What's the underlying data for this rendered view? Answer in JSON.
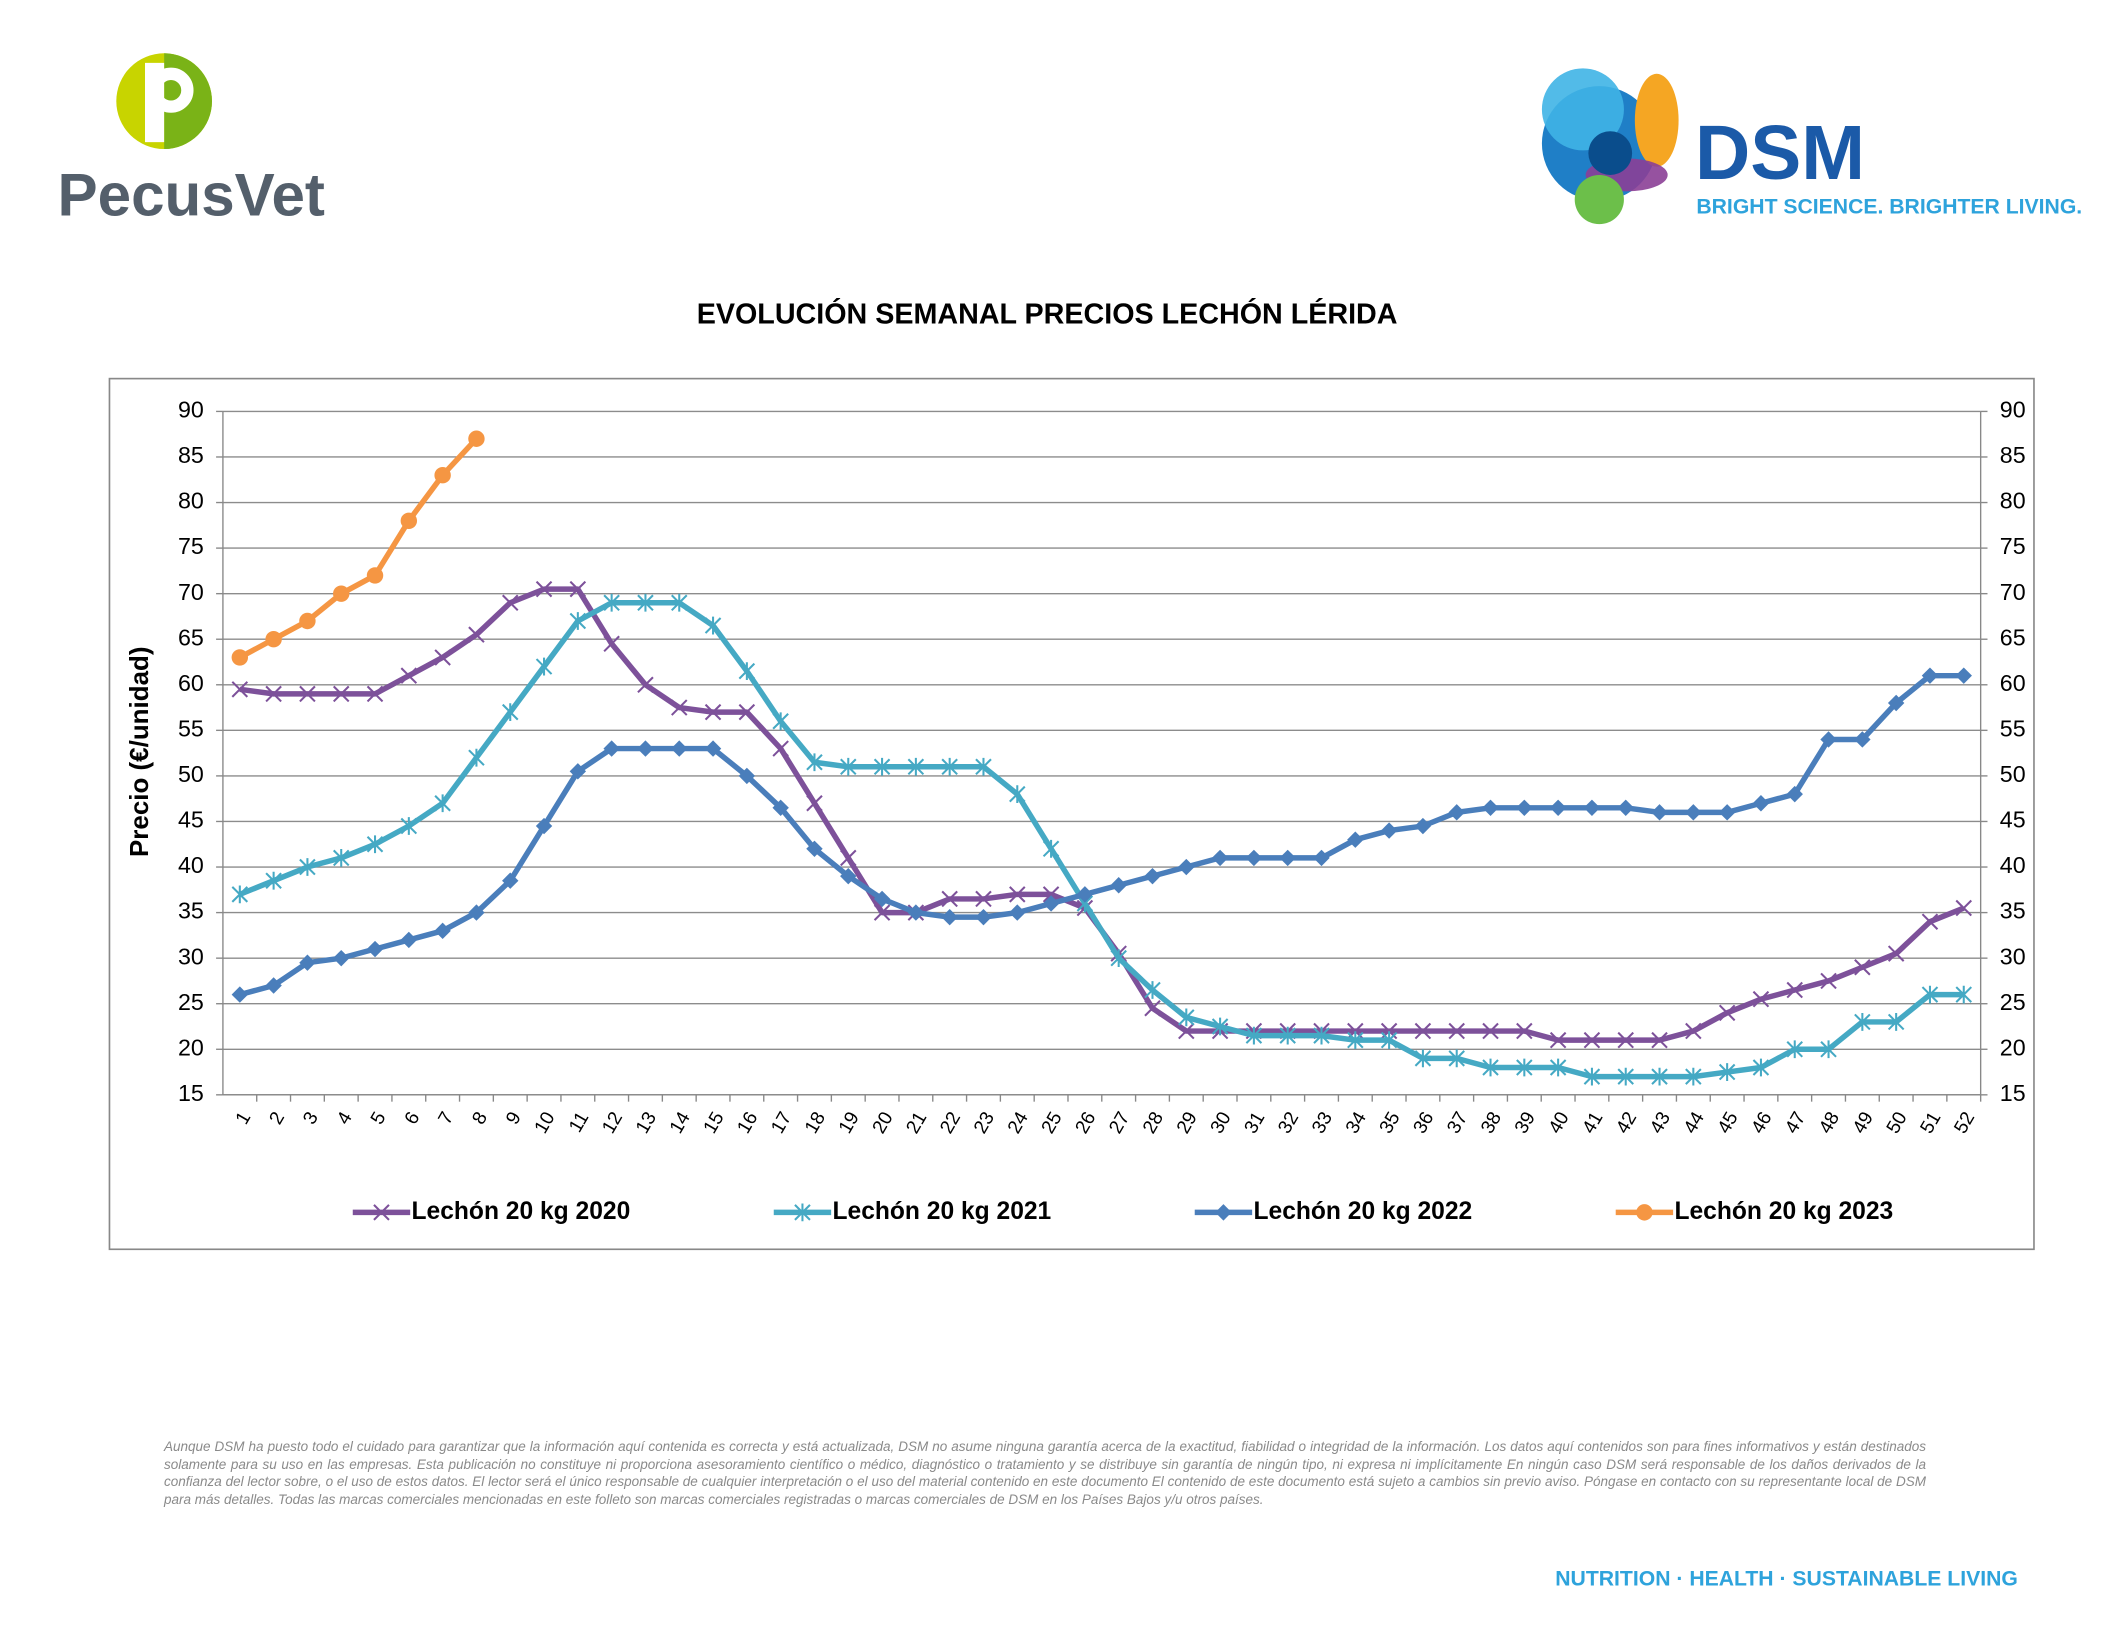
{
  "header": {
    "left_logo": "PecusVet",
    "right_logo": "DSM",
    "right_tagline": "BRIGHT SCIENCE. BRIGHTER LIVING."
  },
  "chart_data": {
    "type": "line",
    "title": "EVOLUCIÓN SEMANAL PRECIOS LECHÓN LÉRIDA",
    "y_label": "Precio (€/unidad)",
    "categories": [
      "1",
      "2",
      "3",
      "4",
      "5",
      "6",
      "7",
      "8",
      "9",
      "10",
      "11",
      "12",
      "13",
      "14",
      "15",
      "16",
      "17",
      "18",
      "19",
      "20",
      "21",
      "22",
      "23",
      "24",
      "25",
      "26",
      "27",
      "28",
      "29",
      "30",
      "31",
      "32",
      "33",
      "34",
      "35",
      "36",
      "37",
      "38",
      "39",
      "40",
      "41",
      "42",
      "43",
      "44",
      "45",
      "46",
      "47",
      "48",
      "49",
      "50",
      "51",
      "52"
    ],
    "series": [
      {
        "name": "Lechón 20 kg 2020",
        "color": "#7d519a",
        "marker": "x",
        "values": [
          59.5,
          59,
          59,
          59,
          59,
          61,
          63,
          65.5,
          69,
          70.5,
          70.5,
          64.5,
          60,
          57.5,
          57,
          57,
          53,
          47,
          41,
          35,
          35,
          36.5,
          36.5,
          37,
          37,
          35.5,
          30.5,
          24.5,
          22,
          22,
          22,
          22,
          22,
          22,
          22,
          22,
          22,
          22,
          22,
          21,
          21,
          21,
          21,
          22,
          24,
          25.5,
          26.5,
          27.5,
          29,
          30.5,
          34,
          35.5
        ]
      },
      {
        "name": "Lechón 20 kg 2021",
        "color": "#45a9c4",
        "marker": "asterisk",
        "values": [
          37,
          38.5,
          40,
          41,
          42.5,
          44.5,
          47,
          52,
          57,
          62,
          67,
          69,
          69,
          69,
          66.5,
          61.5,
          56,
          51.5,
          51,
          51,
          51,
          51,
          51,
          48,
          42,
          36,
          30,
          26.5,
          23.5,
          22.5,
          21.5,
          21.5,
          21.5,
          21,
          21,
          19,
          19,
          18,
          18,
          18,
          17,
          17,
          17,
          17,
          17.5,
          18,
          20,
          20,
          23,
          23,
          26,
          26
        ]
      },
      {
        "name": "Lechón 20 kg 2022",
        "color": "#4a7ebb",
        "marker": "diamond",
        "values": [
          26,
          27,
          29.5,
          30,
          31,
          32,
          33,
          35,
          38.5,
          44.5,
          50.5,
          53,
          53,
          53,
          53,
          50,
          46.5,
          42,
          39,
          36.5,
          35,
          34.5,
          34.5,
          35,
          36,
          37,
          38,
          39,
          40,
          41,
          41,
          41,
          41,
          43,
          44,
          44.5,
          46,
          46.5,
          46.5,
          46.5,
          46.5,
          46.5,
          46,
          46,
          46,
          47,
          48,
          54,
          54,
          58,
          61,
          61
        ]
      },
      {
        "name": "Lechón 20 kg 2023",
        "color": "#f59643",
        "marker": "circle",
        "values": [
          63,
          65,
          67,
          70,
          72,
          78,
          83,
          87,
          null,
          null,
          null,
          null,
          null,
          null,
          null,
          null,
          null,
          null,
          null,
          null,
          null,
          null,
          null,
          null,
          null,
          null,
          null,
          null,
          null,
          null,
          null,
          null,
          null,
          null,
          null,
          null,
          null,
          null,
          null,
          null,
          null,
          null,
          null,
          null,
          null,
          null,
          null,
          null,
          null,
          null,
          null,
          null
        ]
      }
    ],
    "ylim": [
      15,
      90
    ],
    "yticks": [
      15,
      20,
      25,
      30,
      35,
      40,
      45,
      50,
      55,
      60,
      65,
      70,
      75,
      80,
      85,
      90
    ],
    "y2lim": [
      15,
      90
    ],
    "y2ticks": [
      15,
      20,
      25,
      30,
      35,
      40,
      45,
      50,
      55,
      60,
      65,
      70,
      75,
      80,
      85,
      90
    ],
    "grid": true,
    "legend": "bottom"
  },
  "footer": {
    "disclaimer": "Aunque DSM ha puesto todo el cuidado para garantizar que la información aquí contenida es correcta y está actualizada, DSM no asume ninguna garantía acerca de la exactitud, fiabilidad o integridad de la información. Los datos aquí contenidos son para fines informativos y están destinados solamente para su uso en las empresas. Esta publicación no constituye ni proporciona asesoramiento científico o médico, diagnóstico o tratamiento y se distribuye sin garantía de ningún tipo, ni expresa ni implícitamente En ningún caso DSM será responsable de los daños derivados de la confianza del lector sobre, o el uso de estos datos. El lector será el único responsable de cualquier interpretación o el uso del material contenido en este documento El contenido de este documento está sujeto a cambios sin previo aviso. Póngase en contacto con su representante local de DSM para más detalles. Todas las marcas comerciales mencionadas en este folleto son marcas comerciales registradas o marcas comerciales de DSM en los Países Bajos y/u otros países.",
    "slogan": "NUTRITION · HEALTH · SUSTAINABLE LIVING"
  }
}
